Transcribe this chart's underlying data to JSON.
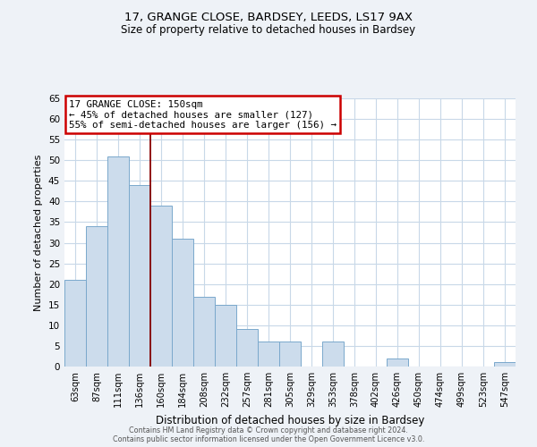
{
  "title1": "17, GRANGE CLOSE, BARDSEY, LEEDS, LS17 9AX",
  "title2": "Size of property relative to detached houses in Bardsey",
  "xlabel": "Distribution of detached houses by size in Bardsey",
  "ylabel": "Number of detached properties",
  "bar_labels": [
    "63sqm",
    "87sqm",
    "111sqm",
    "136sqm",
    "160sqm",
    "184sqm",
    "208sqm",
    "232sqm",
    "257sqm",
    "281sqm",
    "305sqm",
    "329sqm",
    "353sqm",
    "378sqm",
    "402sqm",
    "426sqm",
    "450sqm",
    "474sqm",
    "499sqm",
    "523sqm",
    "547sqm"
  ],
  "bar_values": [
    21,
    34,
    51,
    44,
    39,
    31,
    17,
    15,
    9,
    6,
    6,
    0,
    6,
    0,
    0,
    2,
    0,
    0,
    0,
    0,
    1
  ],
  "bar_color": "#ccdcec",
  "bar_edgecolor": "#7aa8cc",
  "vline_x": 3.5,
  "vline_color": "#880000",
  "annotation_title": "17 GRANGE CLOSE: 150sqm",
  "annotation_line1": "← 45% of detached houses are smaller (127)",
  "annotation_line2": "55% of semi-detached houses are larger (156) →",
  "annotation_box_edgecolor": "#cc0000",
  "ylim": [
    0,
    65
  ],
  "yticks": [
    0,
    5,
    10,
    15,
    20,
    25,
    30,
    35,
    40,
    45,
    50,
    55,
    60,
    65
  ],
  "footer1": "Contains HM Land Registry data © Crown copyright and database right 2024.",
  "footer2": "Contains public sector information licensed under the Open Government Licence v3.0.",
  "background_color": "#eef2f7",
  "plot_background": "#ffffff",
  "grid_color": "#c8d8e8"
}
